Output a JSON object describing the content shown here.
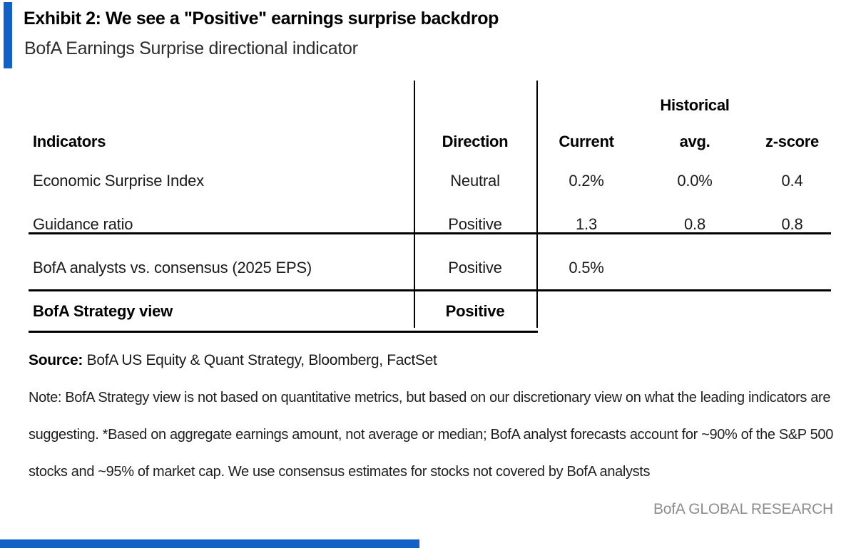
{
  "accent_color": "#1261c7",
  "header": {
    "exhibit_title": "Exhibit 2: We see a \"Positive\" earnings surprise backdrop",
    "subtitle": "BofA Earnings Surprise directional indicator"
  },
  "table": {
    "group_header": "Historical",
    "columns": {
      "indicators": "Indicators",
      "direction": "Direction",
      "current": "Current",
      "avg": "avg.",
      "zscore": "z-score"
    },
    "rows": [
      {
        "indicator": "Economic Surprise Index",
        "direction": "Neutral",
        "current": "0.2%",
        "avg": "0.0%",
        "zscore": "0.4"
      },
      {
        "indicator": "Guidance ratio",
        "direction": "Positive",
        "current": "1.3",
        "avg": "0.8",
        "zscore": "0.8"
      },
      {
        "indicator": "BofA analysts vs. consensus (2025 EPS)",
        "direction": "Positive",
        "current": "0.5%",
        "avg": "",
        "zscore": ""
      }
    ],
    "summary_row": {
      "indicator": "BofA Strategy view",
      "direction": "Positive"
    }
  },
  "footer": {
    "source_label": "Source:",
    "source_text": " BofA US Equity & Quant Strategy, Bloomberg, FactSet",
    "note_lines": [
      "Note: BofA Strategy view is not based on quantitative metrics, but based on our discretionary view on what the leading indicators are",
      "suggesting. *Based on aggregate earnings amount, not average or median; BofA analyst forecasts account for ~90% of the S&P 500",
      "stocks and ~95% of market cap. We use consensus estimates for stocks not covered by BofA analysts"
    ],
    "branding": "BofA GLOBAL RESEARCH"
  }
}
